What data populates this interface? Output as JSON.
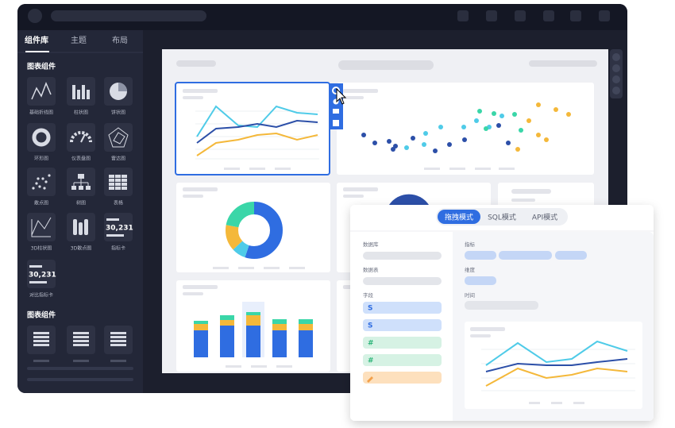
{
  "sidebar": {
    "tabs": [
      "组件库",
      "主题",
      "布局"
    ],
    "sections": [
      {
        "title": "图表组件",
        "items": [
          {
            "label": "基础折线图"
          },
          {
            "label": "柱状图"
          },
          {
            "label": "饼状图"
          },
          {
            "label": "环形图"
          },
          {
            "label": "仪表盘图"
          },
          {
            "label": "雷达图"
          },
          {
            "label": "散点图"
          },
          {
            "label": "树图"
          },
          {
            "label": "表格"
          },
          {
            "label": "3D柱状图"
          },
          {
            "label": "3D散点图"
          },
          {
            "label": "指标卡",
            "icon_text": "30,231"
          },
          {
            "label": "对比指标卡",
            "icon_text": "30,231"
          }
        ]
      },
      {
        "title": "图表组件"
      }
    ]
  },
  "data_panel": {
    "tabs": [
      "拖拽模式",
      "SQL模式",
      "API模式"
    ],
    "left_labels": [
      "数据库",
      "数据表",
      "字段"
    ],
    "fields": [
      "S",
      "S",
      "#",
      "#"
    ],
    "right_labels": [
      "指标",
      "维度",
      "时间"
    ]
  }
}
